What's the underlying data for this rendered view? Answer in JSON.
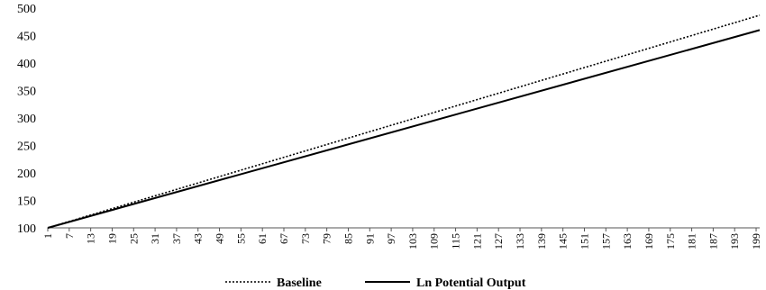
{
  "chart_data": {
    "type": "line",
    "title": "",
    "xlabel": "",
    "ylabel": "",
    "x_range": [
      1,
      200
    ],
    "ylim": [
      100,
      500
    ],
    "y_ticks": [
      100,
      150,
      200,
      250,
      300,
      350,
      400,
      450,
      500
    ],
    "x_tick_start": 1,
    "x_tick_step": 6,
    "grid": false,
    "legend_position": "bottom",
    "series": [
      {
        "name": "Baseline",
        "style": "dotted",
        "color": "#000000",
        "x": [
          1,
          200
        ],
        "y": [
          100,
          487
        ]
      },
      {
        "name": "Ln Potential Output",
        "style": "solid",
        "color": "#000000",
        "x": [
          1,
          200
        ],
        "y": [
          100,
          460
        ]
      }
    ]
  }
}
